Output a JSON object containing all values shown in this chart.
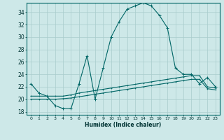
{
  "xlabel": "Humidex (Indice chaleur)",
  "x_ticks": [
    0,
    1,
    2,
    3,
    4,
    5,
    6,
    7,
    8,
    9,
    10,
    11,
    12,
    13,
    14,
    15,
    16,
    17,
    18,
    19,
    20,
    21,
    22,
    23
  ],
  "ylim": [
    17.5,
    35.5
  ],
  "yticks": [
    18,
    20,
    22,
    24,
    26,
    28,
    30,
    32,
    34
  ],
  "xlim": [
    -0.5,
    23.5
  ],
  "background_color": "#cde8e8",
  "grid_color": "#a8cccc",
  "line_color": "#006666",
  "line1_y": [
    22.5,
    21.0,
    20.5,
    19.0,
    18.5,
    18.5,
    22.5,
    27.0,
    20.0,
    25.0,
    30.0,
    32.5,
    34.5,
    35.0,
    35.5,
    35.0,
    33.5,
    31.5,
    25.0,
    24.0,
    24.0,
    22.5,
    23.5,
    22.0
  ],
  "line2_y": [
    20.5,
    20.5,
    20.5,
    20.5,
    20.5,
    20.7,
    21.0,
    21.2,
    21.4,
    21.6,
    21.8,
    22.0,
    22.2,
    22.4,
    22.6,
    22.8,
    23.0,
    23.2,
    23.4,
    23.6,
    23.8,
    23.8,
    22.0,
    21.8
  ],
  "line3_y": [
    20.0,
    20.0,
    20.0,
    20.0,
    20.1,
    20.2,
    20.4,
    20.6,
    20.8,
    21.0,
    21.2,
    21.4,
    21.6,
    21.8,
    22.0,
    22.2,
    22.4,
    22.6,
    22.8,
    23.0,
    23.2,
    23.2,
    21.7,
    21.5
  ]
}
